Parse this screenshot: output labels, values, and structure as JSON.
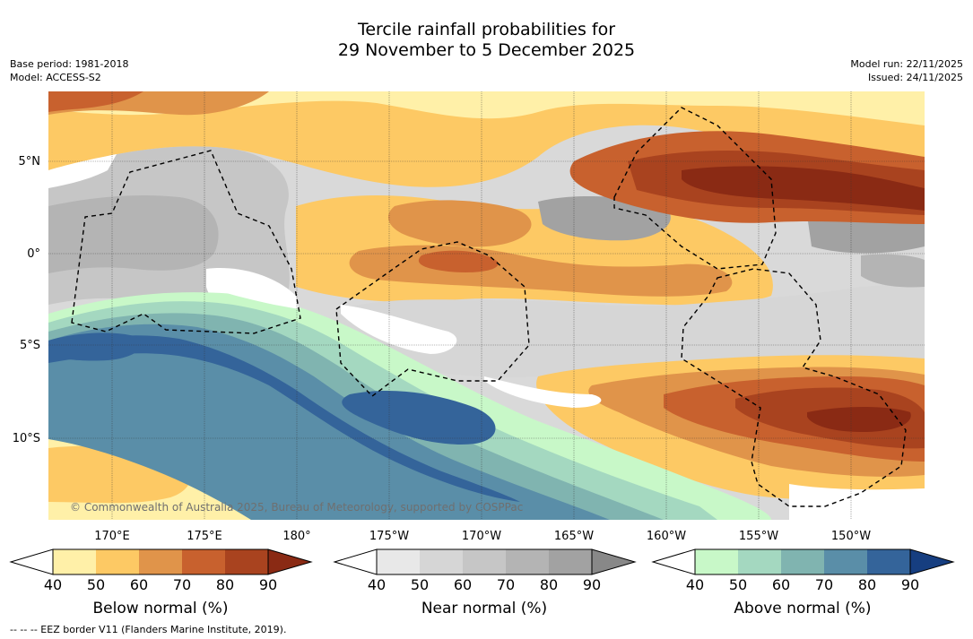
{
  "title": {
    "line1": "Tercile rainfall probabilities for",
    "line2": "29 November to 5 December 2025"
  },
  "meta": {
    "base_period": "Base period: 1981-2018",
    "model": "Model: ACCESS-S2",
    "model_run": "Model run: 22/11/2025",
    "issued": "Issued: 24/11/2025"
  },
  "map": {
    "lat_labels": [
      "5°N",
      "0°",
      "5°S",
      "10°S"
    ],
    "lon_labels": [
      "170°E",
      "175°E",
      "180°",
      "175°W",
      "170°W",
      "165°W",
      "160°W",
      "155°W",
      "150°W"
    ],
    "copyright": "© Commonwealth of Australia 2025, Bureau of Meteorology, supported by COSPPac"
  },
  "colorbars": [
    {
      "label": "Below normal (%)",
      "ticks": [
        "40",
        "50",
        "60",
        "70",
        "80",
        "90"
      ],
      "colors": [
        "#fff0a8",
        "#fdc964",
        "#e0944a",
        "#c8612e",
        "#a9431f",
        "#8a2a14"
      ]
    },
    {
      "label": "Near normal (%)",
      "ticks": [
        "40",
        "50",
        "60",
        "70",
        "80",
        "90"
      ],
      "colors": [
        "#e8e8e8",
        "#d6d6d6",
        "#c6c6c6",
        "#b4b4b4",
        "#a2a2a2",
        "#888888"
      ]
    },
    {
      "label": "Above normal (%)",
      "ticks": [
        "40",
        "50",
        "60",
        "70",
        "80",
        "90"
      ],
      "colors": [
        "#c8f8c8",
        "#a4d8c0",
        "#80b4b0",
        "#5a8ea8",
        "#34649a",
        "#163e80"
      ]
    }
  ],
  "footnote": "-- -- -- EEZ border V11 (Flanders Marine Institute, 2019)."
}
